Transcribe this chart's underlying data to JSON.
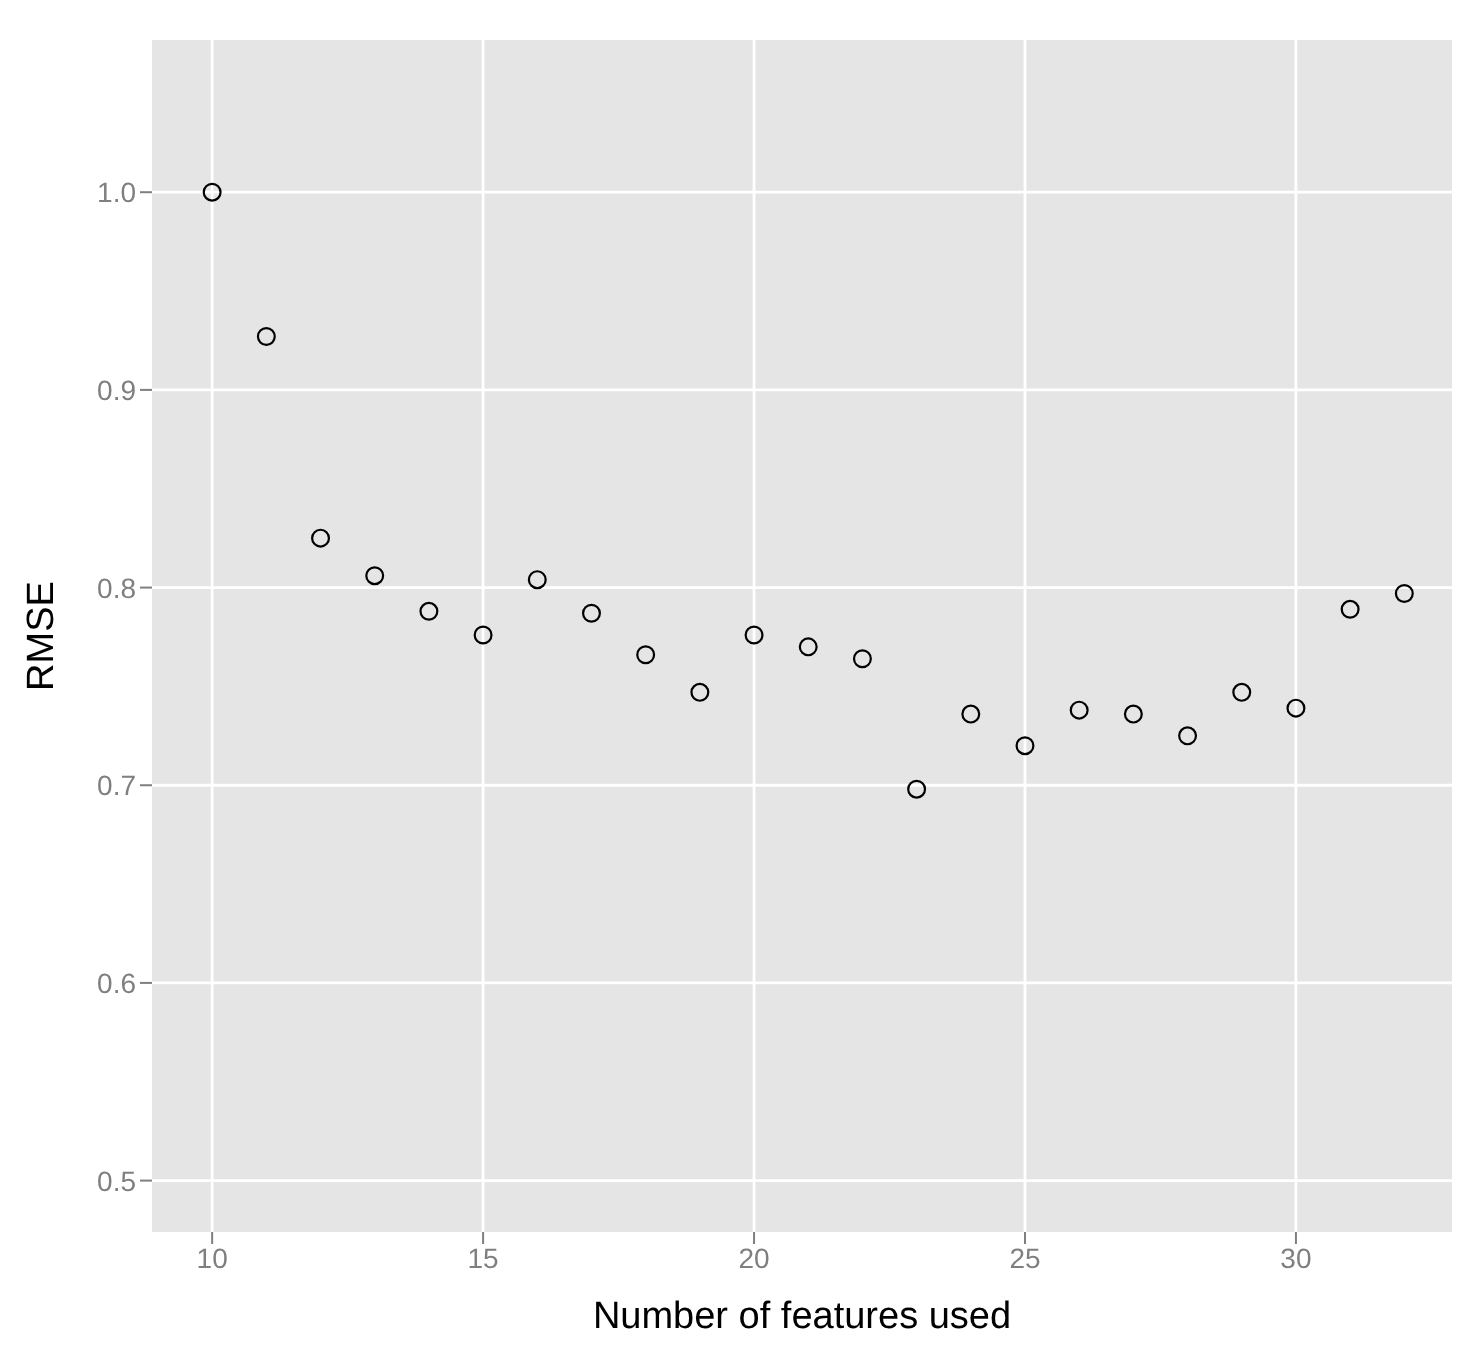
{
  "chart_data": {
    "type": "scatter",
    "xlabel": "Number of features used",
    "ylabel": "RMSE",
    "x": [
      10,
      11,
      12,
      13,
      14,
      15,
      16,
      17,
      18,
      19,
      20,
      21,
      22,
      23,
      24,
      25,
      26,
      27,
      28,
      29,
      30,
      31,
      32
    ],
    "series": [
      {
        "color": "#000000",
        "values": [
          1.0,
          0.927,
          0.825,
          0.806,
          0.788,
          0.776,
          0.804,
          0.787,
          0.766,
          0.747,
          0.776,
          0.77,
          0.764,
          0.698,
          0.736,
          0.72,
          0.738,
          0.736,
          0.725,
          0.747,
          0.739,
          0.789,
          0.797
        ]
      }
    ],
    "xlim": [
      8.89,
      32.88
    ],
    "xticks": [
      10,
      15,
      20,
      25,
      30
    ],
    "ylim": [
      0.474,
      1.077
    ],
    "yticks": [
      {
        "value": 0.5,
        "label": "0.5"
      },
      {
        "value": 0.6,
        "label": "0.6"
      },
      {
        "value": 0.7,
        "label": "0.7"
      },
      {
        "value": 0.8,
        "label": "0.8"
      },
      {
        "value": 0.9,
        "label": "0.9"
      },
      {
        "value": 1.0,
        "label": "1.0"
      }
    ],
    "grid": true,
    "marker": "circle"
  }
}
